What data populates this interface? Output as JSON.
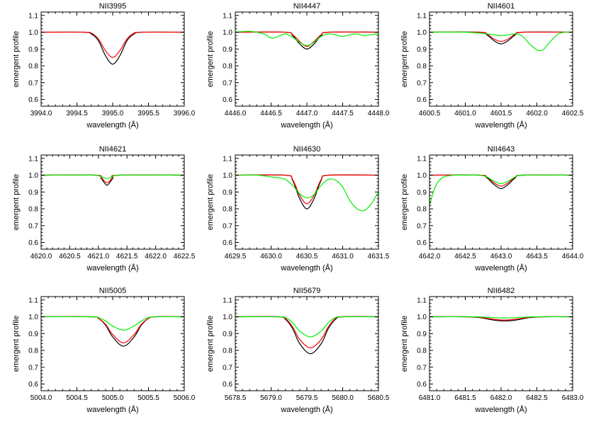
{
  "figure": {
    "layout": {
      "rows": 3,
      "cols": 3
    },
    "xlabel": "wavelength (Å)",
    "ylabel": "emergent profile",
    "ylim": [
      0.56,
      1.12
    ],
    "yticks": [
      0.6,
      0.7,
      0.8,
      0.9,
      1.0,
      1.1
    ],
    "series_colors": [
      "#000000",
      "#ff0000",
      "#00ee00"
    ],
    "grid": false,
    "legend": "none"
  },
  "chart_data": [
    {
      "type": "line",
      "title": "NII3995",
      "xlabel": "wavelength (Å)",
      "ylabel": "emergent profile",
      "xlim": [
        3994.0,
        3996.0
      ],
      "ylim": [
        0.56,
        1.12
      ],
      "xticks": [
        3994.0,
        3994.5,
        3995.0,
        3995.5,
        3996.0
      ],
      "yticks": [
        0.6,
        0.7,
        0.8,
        0.9,
        1.0,
        1.1
      ],
      "series": [
        {
          "color": "#000000",
          "x": [
            3994.0,
            3994.6,
            3994.7,
            3994.8,
            3994.9,
            3995.0,
            3995.1,
            3995.2,
            3995.3,
            3995.4,
            3996.0
          ],
          "y": [
            1.0,
            1.0,
            0.99,
            0.95,
            0.86,
            0.81,
            0.86,
            0.95,
            0.99,
            1.0,
            1.0
          ]
        },
        {
          "color": "#ff0000",
          "x": [
            3994.0,
            3994.6,
            3994.7,
            3994.8,
            3994.9,
            3995.0,
            3995.1,
            3995.2,
            3995.3,
            3995.4,
            3996.0
          ],
          "y": [
            1.0,
            1.0,
            0.995,
            0.96,
            0.89,
            0.85,
            0.89,
            0.96,
            0.995,
            1.0,
            1.0
          ]
        }
      ]
    },
    {
      "type": "line",
      "title": "NII4447",
      "xlabel": "wavelength (Å)",
      "ylabel": "emergent profile",
      "xlim": [
        4446.0,
        4448.0
      ],
      "ylim": [
        0.56,
        1.12
      ],
      "xticks": [
        4446.0,
        4446.5,
        4447.0,
        4447.5,
        4448.0
      ],
      "yticks": [
        0.6,
        0.7,
        0.8,
        0.9,
        1.0,
        1.1
      ],
      "series": [
        {
          "color": "#000000",
          "x": [
            4446.0,
            4446.7,
            4446.8,
            4446.9,
            4447.0,
            4447.1,
            4447.2,
            4447.3,
            4448.0
          ],
          "y": [
            1.0,
            1.0,
            0.98,
            0.93,
            0.9,
            0.93,
            0.98,
            1.0,
            1.0
          ]
        },
        {
          "color": "#ff0000",
          "x": [
            4446.0,
            4446.7,
            4446.8,
            4446.9,
            4447.0,
            4447.1,
            4447.2,
            4447.3,
            4448.0
          ],
          "y": [
            1.0,
            1.0,
            0.985,
            0.945,
            0.915,
            0.945,
            0.985,
            1.0,
            1.0
          ]
        },
        {
          "color": "#00ee00",
          "x": [
            4446.0,
            4446.2,
            4446.4,
            4446.5,
            4446.6,
            4446.7,
            4446.8,
            4446.9,
            4447.0,
            4447.1,
            4447.2,
            4447.3,
            4447.4,
            4447.5,
            4447.6,
            4447.7,
            4447.8,
            4447.9,
            4448.0
          ],
          "y": [
            1.0,
            1.005,
            0.99,
            0.965,
            0.975,
            0.99,
            0.97,
            0.94,
            0.92,
            0.94,
            0.975,
            0.99,
            0.985,
            0.975,
            0.985,
            0.99,
            0.98,
            0.985,
            0.99
          ]
        }
      ]
    },
    {
      "type": "line",
      "title": "NII4601",
      "xlabel": "wavelength (Å)",
      "ylabel": "emergent profile",
      "xlim": [
        4600.5,
        4602.5
      ],
      "ylim": [
        0.56,
        1.12
      ],
      "xticks": [
        4600.5,
        4601.0,
        4601.5,
        4602.0,
        4602.5
      ],
      "yticks": [
        0.6,
        0.7,
        0.8,
        0.9,
        1.0,
        1.1
      ],
      "series": [
        {
          "color": "#000000",
          "x": [
            4600.5,
            4601.2,
            4601.3,
            4601.4,
            4601.5,
            4601.6,
            4601.7,
            4601.8,
            4602.5
          ],
          "y": [
            1.0,
            1.0,
            0.985,
            0.95,
            0.93,
            0.95,
            0.985,
            1.0,
            1.0
          ]
        },
        {
          "color": "#ff0000",
          "x": [
            4600.5,
            4601.2,
            4601.3,
            4601.4,
            4601.5,
            4601.6,
            4601.7,
            4601.8,
            4602.5
          ],
          "y": [
            1.0,
            1.0,
            0.99,
            0.96,
            0.945,
            0.96,
            0.99,
            1.0,
            1.0
          ]
        },
        {
          "color": "#00ee00",
          "x": [
            4600.5,
            4601.0,
            4601.3,
            4601.5,
            4601.7,
            4601.8,
            4601.9,
            4602.0,
            4602.05,
            4602.1,
            4602.2,
            4602.3,
            4602.4,
            4602.5
          ],
          "y": [
            1.0,
            1.0,
            0.99,
            0.98,
            0.99,
            0.975,
            0.93,
            0.895,
            0.89,
            0.9,
            0.95,
            0.99,
            1.0,
            1.0
          ]
        }
      ]
    },
    {
      "type": "line",
      "title": "NII4621",
      "xlabel": "wavelength (Å)",
      "ylabel": "emergent profile",
      "xlim": [
        4620.0,
        4622.5
      ],
      "ylim": [
        0.56,
        1.12
      ],
      "xticks": [
        4620.0,
        4620.5,
        4621.0,
        4621.5,
        4622.0,
        4622.5
      ],
      "yticks": [
        0.6,
        0.7,
        0.8,
        0.9,
        1.0,
        1.1
      ],
      "series": [
        {
          "color": "#000000",
          "x": [
            4620.0,
            4620.95,
            4621.05,
            4621.15,
            4621.25,
            4621.35,
            4622.5
          ],
          "y": [
            1.0,
            1.0,
            0.98,
            0.94,
            0.98,
            1.0,
            1.0
          ]
        },
        {
          "color": "#ff0000",
          "x": [
            4620.0,
            4620.95,
            4621.05,
            4621.15,
            4621.25,
            4621.35,
            4622.5
          ],
          "y": [
            1.0,
            1.0,
            0.985,
            0.955,
            0.985,
            1.0,
            1.0
          ]
        },
        {
          "color": "#00ee00",
          "x": [
            4620.0,
            4620.9,
            4621.05,
            4621.15,
            4621.25,
            4621.4,
            4622.5
          ],
          "y": [
            1.0,
            1.0,
            0.99,
            0.98,
            0.99,
            1.0,
            1.0
          ]
        }
      ]
    },
    {
      "type": "line",
      "title": "NII4630",
      "xlabel": "wavelength (Å)",
      "ylabel": "emergent profile",
      "xlim": [
        4629.5,
        4631.5
      ],
      "ylim": [
        0.56,
        1.12
      ],
      "xticks": [
        4629.5,
        4630.0,
        4630.5,
        4631.0,
        4631.5
      ],
      "yticks": [
        0.6,
        0.7,
        0.8,
        0.9,
        1.0,
        1.1
      ],
      "series": [
        {
          "color": "#000000",
          "x": [
            4629.5,
            4630.2,
            4630.3,
            4630.4,
            4630.5,
            4630.6,
            4630.7,
            4630.8,
            4631.5
          ],
          "y": [
            1.0,
            1.0,
            0.97,
            0.86,
            0.8,
            0.86,
            0.97,
            1.0,
            1.0
          ]
        },
        {
          "color": "#ff0000",
          "x": [
            4629.5,
            4630.2,
            4630.3,
            4630.4,
            4630.5,
            4630.6,
            4630.7,
            4630.8,
            4631.5
          ],
          "y": [
            1.0,
            1.0,
            0.975,
            0.88,
            0.83,
            0.88,
            0.975,
            1.0,
            1.0
          ]
        },
        {
          "color": "#00ee00",
          "x": [
            4629.5,
            4629.8,
            4630.0,
            4630.1,
            4630.2,
            4630.3,
            4630.4,
            4630.5,
            4630.6,
            4630.7,
            4630.8,
            4630.9,
            4631.0,
            4631.1,
            4631.2,
            4631.3,
            4631.4,
            4631.5
          ],
          "y": [
            1.0,
            1.0,
            0.99,
            0.985,
            0.975,
            0.94,
            0.89,
            0.865,
            0.885,
            0.94,
            0.975,
            0.97,
            0.93,
            0.85,
            0.8,
            0.79,
            0.83,
            0.9
          ]
        }
      ]
    },
    {
      "type": "line",
      "title": "NII4643",
      "xlabel": "wavelength (Å)",
      "ylabel": "emergent profile",
      "xlim": [
        4642.0,
        4644.0
      ],
      "ylim": [
        0.56,
        1.12
      ],
      "xticks": [
        4642.0,
        4642.5,
        4643.0,
        4643.5,
        4644.0
      ],
      "yticks": [
        0.6,
        0.7,
        0.8,
        0.9,
        1.0,
        1.1
      ],
      "series": [
        {
          "color": "#000000",
          "x": [
            4642.0,
            4642.7,
            4642.8,
            4642.9,
            4643.0,
            4643.1,
            4643.2,
            4643.3,
            4644.0
          ],
          "y": [
            1.0,
            1.0,
            0.985,
            0.945,
            0.92,
            0.945,
            0.985,
            1.0,
            1.0
          ]
        },
        {
          "color": "#ff0000",
          "x": [
            4642.0,
            4642.7,
            4642.8,
            4642.9,
            4643.0,
            4643.1,
            4643.2,
            4643.3,
            4644.0
          ],
          "y": [
            1.0,
            1.0,
            0.99,
            0.955,
            0.935,
            0.955,
            0.99,
            1.0,
            1.0
          ]
        },
        {
          "color": "#00ee00",
          "x": [
            4642.0,
            4642.04,
            4642.08,
            4642.12,
            4642.18,
            4642.25,
            4642.35,
            4642.5,
            4642.7,
            4642.8,
            4642.9,
            4643.0,
            4643.1,
            4643.2,
            4643.3,
            4644.0
          ],
          "y": [
            0.82,
            0.88,
            0.93,
            0.96,
            0.985,
            0.995,
            1.0,
            1.0,
            1.0,
            0.99,
            0.965,
            0.95,
            0.965,
            0.99,
            1.0,
            1.0
          ]
        }
      ]
    },
    {
      "type": "line",
      "title": "NII5005",
      "xlabel": "wavelength (Å)",
      "ylabel": "emergent profile",
      "xlim": [
        5004.0,
        5006.0
      ],
      "ylim": [
        0.56,
        1.12
      ],
      "xticks": [
        5004.0,
        5004.5,
        5005.0,
        5005.5,
        5006.0
      ],
      "yticks": [
        0.6,
        0.7,
        0.8,
        0.9,
        1.0,
        1.1
      ],
      "series": [
        {
          "color": "#000000",
          "x": [
            5004.0,
            5004.7,
            5004.8,
            5004.9,
            5005.0,
            5005.15,
            5005.3,
            5005.4,
            5005.5,
            5005.6,
            5006.0
          ],
          "y": [
            1.0,
            1.0,
            0.99,
            0.95,
            0.88,
            0.825,
            0.88,
            0.95,
            0.99,
            1.0,
            1.0
          ]
        },
        {
          "color": "#ff0000",
          "x": [
            5004.0,
            5004.7,
            5004.8,
            5004.9,
            5005.0,
            5005.15,
            5005.3,
            5005.4,
            5005.5,
            5005.6,
            5006.0
          ],
          "y": [
            1.0,
            1.0,
            0.99,
            0.955,
            0.895,
            0.845,
            0.895,
            0.955,
            0.99,
            1.0,
            1.0
          ]
        },
        {
          "color": "#00ee00",
          "x": [
            5004.0,
            5004.7,
            5004.8,
            5004.9,
            5005.0,
            5005.15,
            5005.3,
            5005.4,
            5005.5,
            5005.6,
            5006.0
          ],
          "y": [
            1.0,
            1.0,
            0.995,
            0.975,
            0.945,
            0.92,
            0.945,
            0.975,
            0.995,
            1.0,
            1.0
          ]
        }
      ]
    },
    {
      "type": "line",
      "title": "NII5679",
      "xlabel": "wavelength (Å)",
      "ylabel": "emergent profile",
      "xlim": [
        5678.5,
        5680.5
      ],
      "ylim": [
        0.56,
        1.12
      ],
      "xticks": [
        5678.5,
        5679.0,
        5679.5,
        5680.0,
        5680.5
      ],
      "yticks": [
        0.6,
        0.7,
        0.8,
        0.9,
        1.0,
        1.1
      ],
      "series": [
        {
          "color": "#000000",
          "x": [
            5678.5,
            5679.1,
            5679.2,
            5679.3,
            5679.4,
            5679.55,
            5679.7,
            5679.8,
            5679.9,
            5680.0,
            5680.5
          ],
          "y": [
            1.0,
            1.0,
            0.985,
            0.93,
            0.84,
            0.78,
            0.84,
            0.93,
            0.985,
            1.0,
            1.0
          ]
        },
        {
          "color": "#ff0000",
          "x": [
            5678.5,
            5679.1,
            5679.2,
            5679.3,
            5679.4,
            5679.55,
            5679.7,
            5679.8,
            5679.9,
            5680.0,
            5680.5
          ],
          "y": [
            1.0,
            1.0,
            0.99,
            0.94,
            0.865,
            0.815,
            0.865,
            0.94,
            0.99,
            1.0,
            1.0
          ]
        },
        {
          "color": "#00ee00",
          "x": [
            5678.5,
            5679.1,
            5679.2,
            5679.3,
            5679.4,
            5679.55,
            5679.7,
            5679.8,
            5679.9,
            5680.0,
            5680.5
          ],
          "y": [
            1.0,
            1.0,
            0.995,
            0.965,
            0.915,
            0.88,
            0.915,
            0.965,
            0.995,
            1.0,
            1.0
          ]
        }
      ]
    },
    {
      "type": "line",
      "title": "NII6482",
      "xlabel": "wavelength (Å)",
      "ylabel": "emergent profile",
      "xlim": [
        6481.0,
        6483.0
      ],
      "ylim": [
        0.56,
        1.12
      ],
      "xticks": [
        6481.0,
        6481.5,
        6482.0,
        6482.5,
        6483.0
      ],
      "yticks": [
        0.6,
        0.7,
        0.8,
        0.9,
        1.0,
        1.1
      ],
      "series": [
        {
          "color": "#000000",
          "x": [
            6481.0,
            6481.5,
            6481.7,
            6481.9,
            6482.05,
            6482.2,
            6482.4,
            6482.6,
            6483.0
          ],
          "y": [
            1.0,
            1.0,
            0.995,
            0.98,
            0.975,
            0.98,
            0.995,
            1.0,
            1.0
          ]
        },
        {
          "color": "#ff0000",
          "x": [
            6481.0,
            6481.5,
            6481.7,
            6481.9,
            6482.05,
            6482.2,
            6482.4,
            6482.6,
            6483.0
          ],
          "y": [
            1.0,
            1.0,
            0.997,
            0.985,
            0.98,
            0.985,
            0.997,
            1.0,
            1.0
          ]
        },
        {
          "color": "#00ee00",
          "x": [
            6481.0,
            6481.6,
            6481.8,
            6482.05,
            6482.3,
            6482.5,
            6483.0
          ],
          "y": [
            1.0,
            1.0,
            0.997,
            0.993,
            0.997,
            1.0,
            1.0
          ]
        }
      ]
    }
  ]
}
